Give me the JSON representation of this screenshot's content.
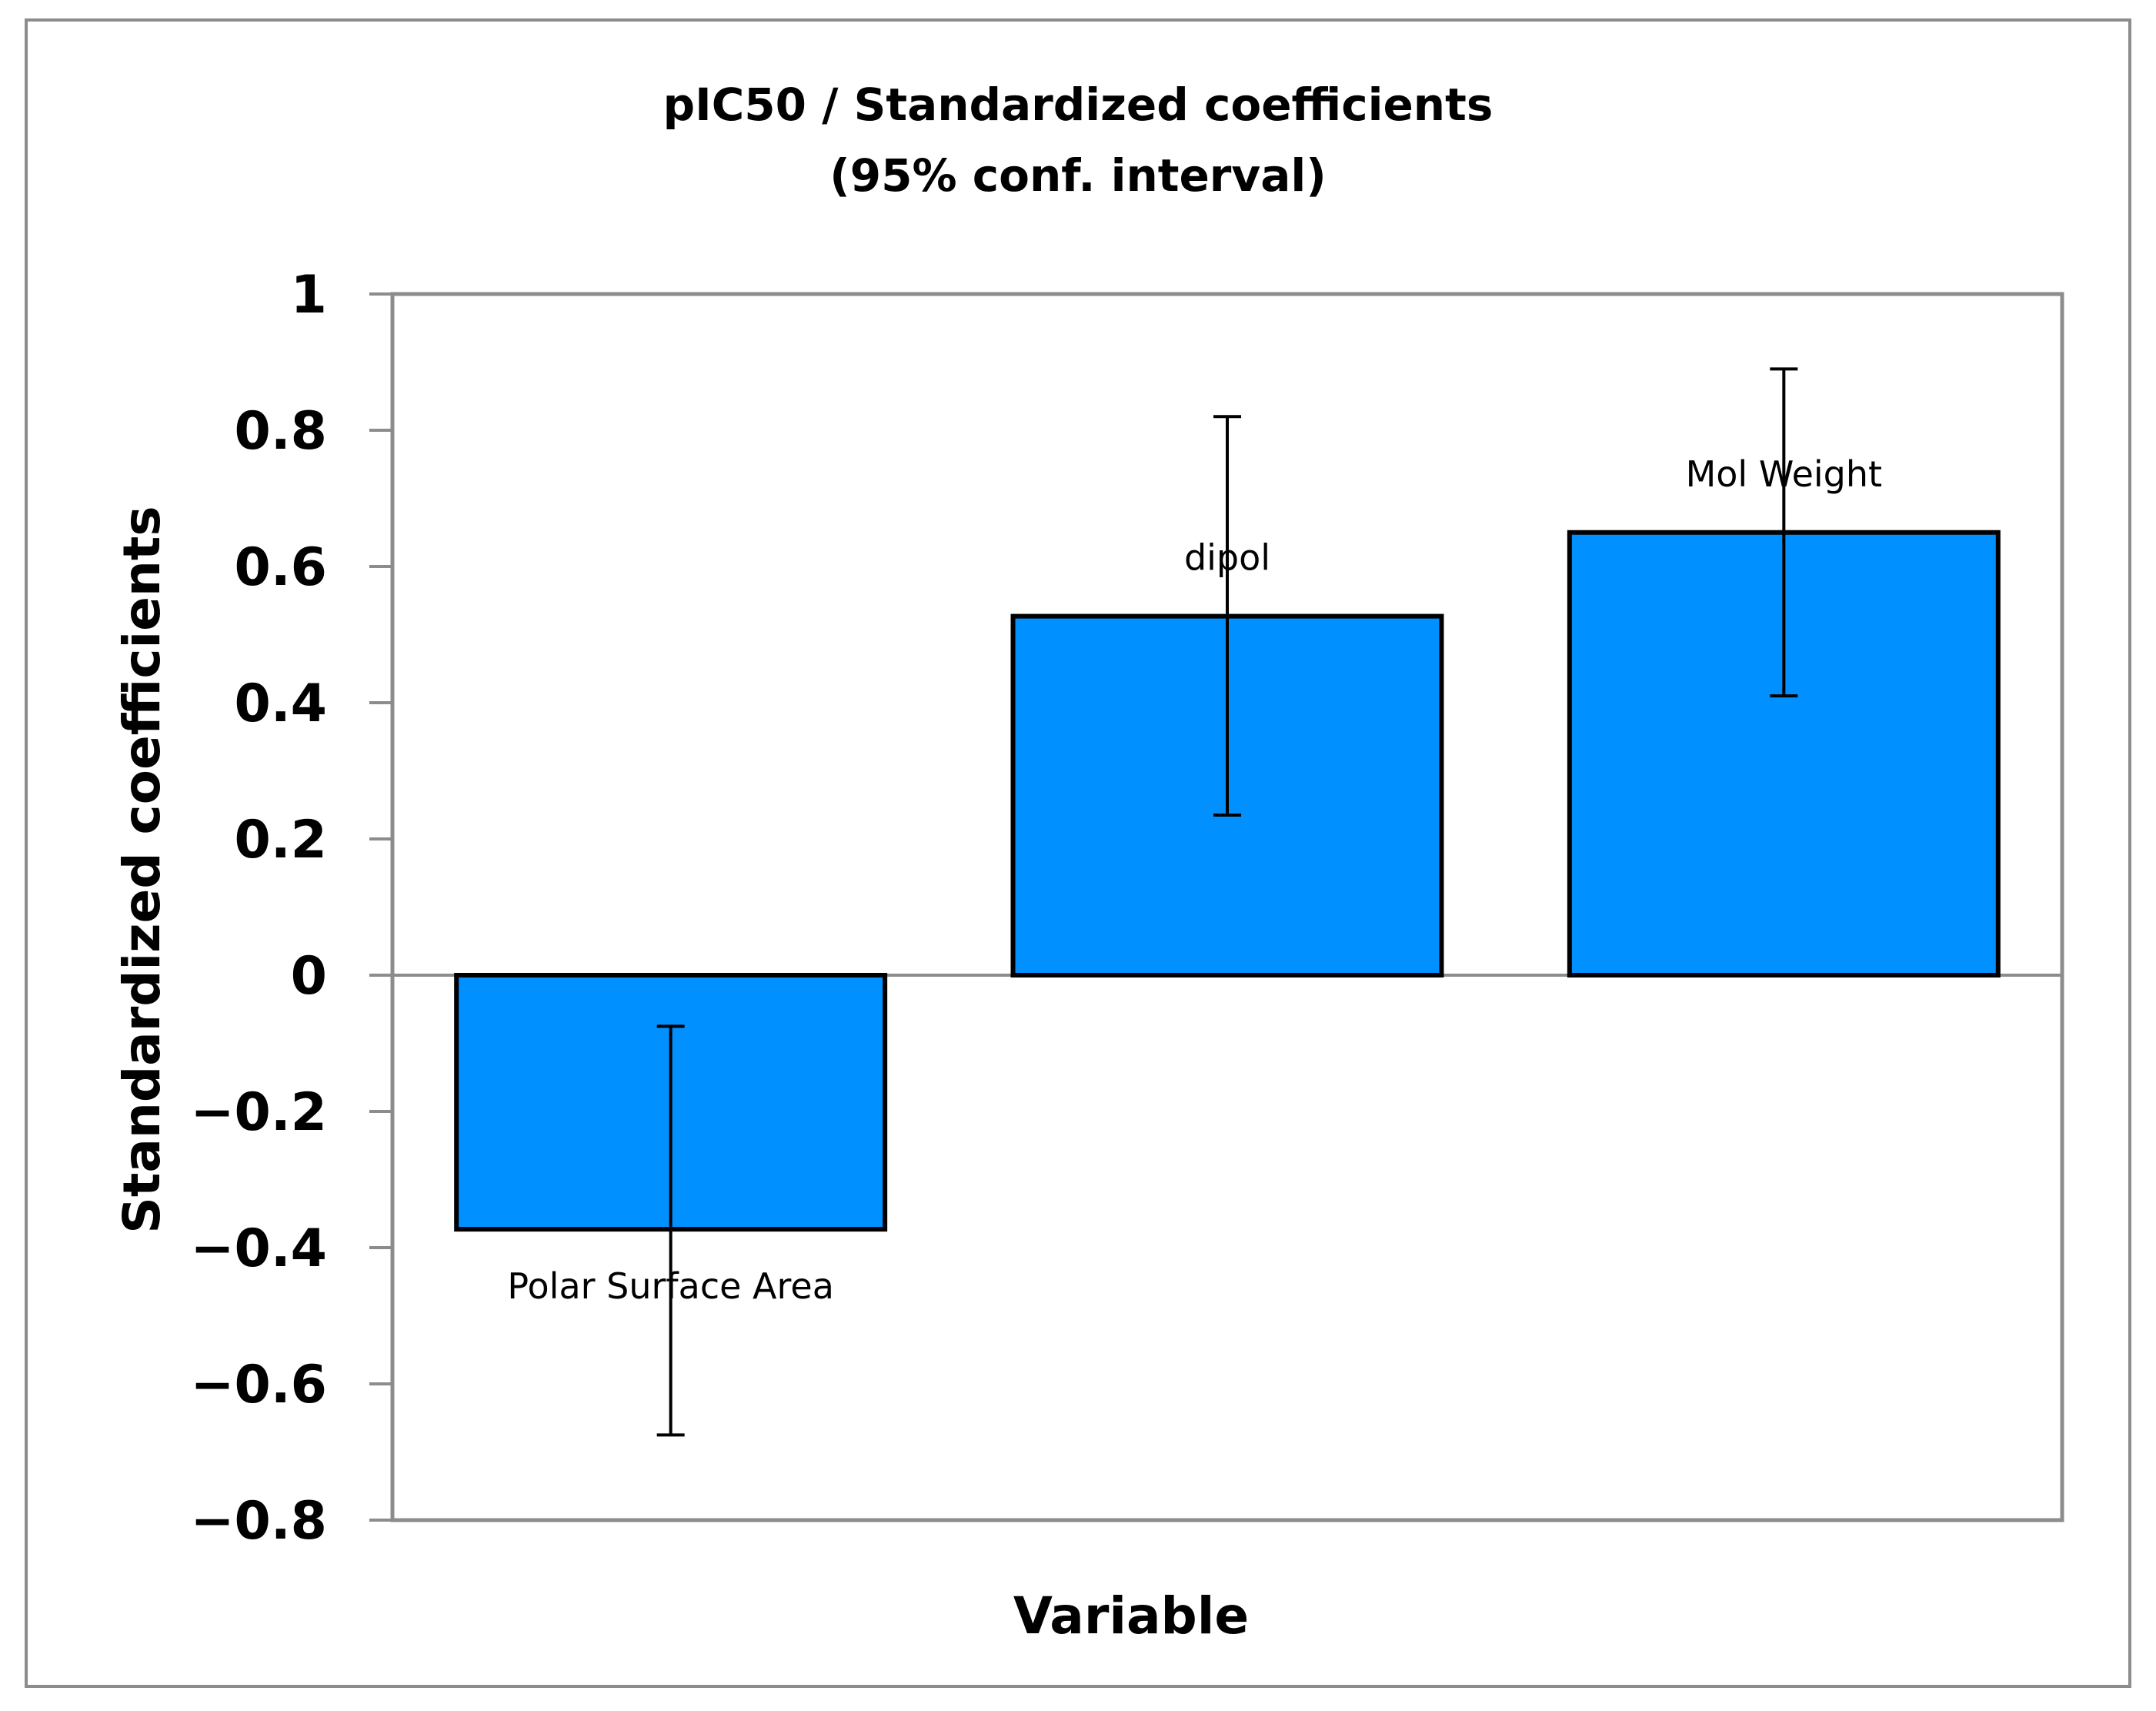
{
  "chart_data": {
    "type": "bar",
    "title_lines": [
      "pIC50 / Standardized coefficients",
      "(95% conf. interval)"
    ],
    "xlabel": "Variable",
    "ylabel": "Standardized coefficients",
    "ylim": [
      -0.8,
      1
    ],
    "yticks": [
      1,
      0.8,
      0.6,
      0.4,
      0.2,
      0,
      -0.2,
      -0.4,
      -0.6,
      -0.8
    ],
    "ytick_labels": [
      "1",
      "0.8",
      "0.6",
      "0.4",
      "0.2",
      "0",
      "−0.2",
      "−0.4",
      "−0.6",
      "−0.8"
    ],
    "categories": [
      "Polar Surface Area",
      "dipol",
      "Mol Weight"
    ],
    "values": [
      -0.373,
      0.527,
      0.65
    ],
    "error_low": [
      -0.675,
      0.235,
      0.41
    ],
    "error_high": [
      -0.075,
      0.82,
      0.89
    ],
    "bar_color": "#0090ff",
    "grid": false,
    "legend": "none"
  }
}
